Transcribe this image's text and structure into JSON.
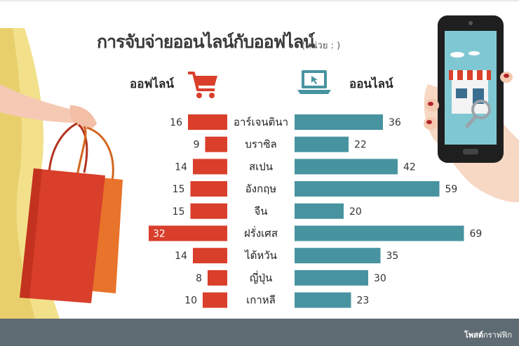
{
  "title": "การจับจ่ายออนไลน์กับออฟไลน์",
  "unit_label": "(หน่วย : )",
  "offline_label": "ออฟไลน์",
  "online_label": "ออนไลน์",
  "footer_brand": "โพสต์",
  "footer_suffix": "กราฟฟิก",
  "colors": {
    "offline": "#d93f2b",
    "online": "#4794a0",
    "footer": "#5f6b73"
  },
  "icons": {
    "offline": "shopping-cart-icon",
    "online": "laptop-cursor-icon"
  },
  "chart_data": {
    "type": "bar",
    "categories": [
      "อาร์เจนตินา",
      "บราซิล",
      "สเปน",
      "อังกฤษ",
      "จีน",
      "ฝรั่งเศส",
      "ไต้หวัน",
      "ญี่ปุ่น",
      "เกาหลี"
    ],
    "series": [
      {
        "name": "ออฟไลน์",
        "values": [
          16,
          9,
          14,
          15,
          15,
          32,
          14,
          8,
          10
        ]
      },
      {
        "name": "ออนไลน์",
        "values": [
          36,
          22,
          42,
          59,
          20,
          69,
          35,
          30,
          23
        ]
      }
    ],
    "orientation": "horizontal-diverging"
  }
}
